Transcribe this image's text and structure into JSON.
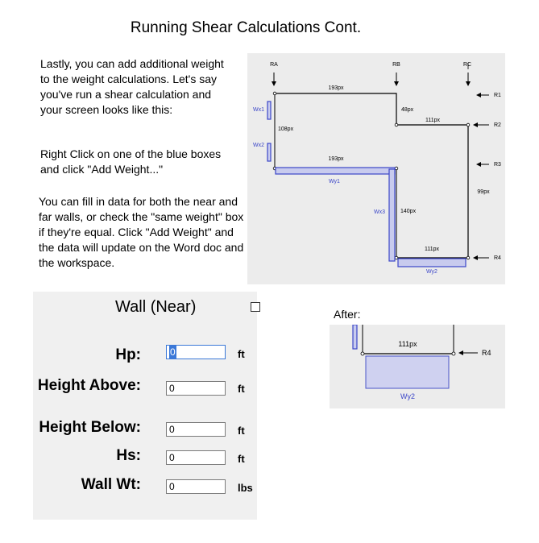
{
  "title": "Running Shear Calculations Cont.",
  "paragraphs": [
    "Lastly, you can add additional weight to the weight calculations. Let's say you've run a shear calculation and your screen looks like this:",
    "Right Click on one of the blue boxes and click \"Add Weight...\"",
    "You can fill in data for both the near and far walls, or check the \"same weight\" box if they're equal. Click \"Add Weight\" and the data will update on the Word doc and the workspace."
  ],
  "dialog": {
    "title": "Wall (Near)",
    "fields": [
      {
        "label": "Hp:",
        "value": "0",
        "unit": "ft"
      },
      {
        "label": "Height Above:",
        "value": "0",
        "unit": "ft"
      },
      {
        "label": "Height Below:",
        "value": "0",
        "unit": "ft"
      },
      {
        "label": "Hs:",
        "value": "0",
        "unit": "ft"
      },
      {
        "label": "Wall Wt:",
        "value": "0",
        "unit": "lbs"
      }
    ]
  },
  "diagram": {
    "top_markers": [
      "RA",
      "RB",
      "RC"
    ],
    "right_markers": [
      "R1",
      "R2",
      "R3",
      "R4"
    ],
    "wall_labels": [
      "Wx1",
      "Wx2",
      "Wx3",
      "Wy1",
      "Wy2"
    ],
    "dims": [
      "193px",
      "108px",
      "48px",
      "111px",
      "193px",
      "140px",
      "111px",
      "99px"
    ],
    "colors": {
      "wall_fill": "#c8cbee",
      "wall_stroke": "#3b46c8"
    }
  },
  "after": {
    "label": "After:",
    "dim": "111px",
    "marker": "R4",
    "wall_label": "Wy2"
  }
}
